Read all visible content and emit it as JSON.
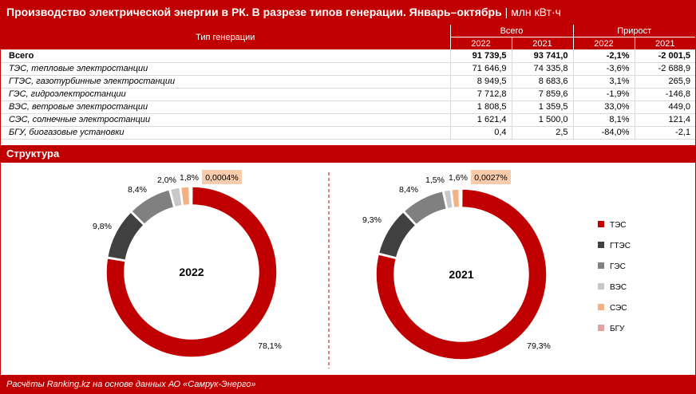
{
  "header": {
    "title_bold": "Производство электрической энергии в РК. В разрезе типов генерации. Январь–октябрь",
    "unit": "| млн кВт·ч"
  },
  "table": {
    "col_type": "Тип генерации",
    "group_total": "Всего",
    "group_growth": "Прирост",
    "years": [
      "2022",
      "2021",
      "2022",
      "2021"
    ],
    "rows": [
      {
        "name": "Всего",
        "v2022": "91 739,5",
        "v2021": "93 741,0",
        "g2022": "-2,1%",
        "g2021": "-2 001,5"
      },
      {
        "name": "ТЭС, тепловые электростанции",
        "v2022": "71 646,9",
        "v2021": "74 335,8",
        "g2022": "-3,6%",
        "g2021": "-2 688,9"
      },
      {
        "name": "ГТЭС, газотурбинные электростанции",
        "v2022": "8 949,5",
        "v2021": "8 683,6",
        "g2022": "3,1%",
        "g2021": "265,9"
      },
      {
        "name": "ГЭС, гидроэлектростанции",
        "v2022": "7 712,8",
        "v2021": "7 859,6",
        "g2022": "-1,9%",
        "g2021": "-146,8"
      },
      {
        "name": "ВЭС, ветровые электростанции",
        "v2022": "1 808,5",
        "v2021": "1 359,5",
        "g2022": "33,0%",
        "g2021": "449,0"
      },
      {
        "name": "СЭС, солнечные электростанции",
        "v2022": "1 621,4",
        "v2021": "1 500,0",
        "g2022": "8,1%",
        "g2021": "121,4"
      },
      {
        "name": "БГУ, биогазовые установки",
        "v2022": "0,4",
        "v2021": "2,5",
        "g2022": "-84,0%",
        "g2021": "-2,1"
      }
    ]
  },
  "structure_title": "Структура",
  "footer": "Расчёты Ranking.kz на основе данных АО «Самрук-Энерго»",
  "colors": {
    "ТЭС": "#c00000",
    "ГТЭС": "#404040",
    "ГЭС": "#808080",
    "ВЭС": "#c8c8c8",
    "СЭС": "#f4b183",
    "БГУ": "#e6a0a0",
    "highlight": "#f8cbad"
  },
  "chart_data": [
    {
      "type": "pie",
      "center_label": "2022",
      "categories": [
        "ТЭС",
        "ГТЭС",
        "ГЭС",
        "ВЭС",
        "СЭС",
        "БГУ"
      ],
      "values": [
        78.1,
        9.8,
        8.4,
        2.0,
        1.8,
        0.0004
      ],
      "labels": [
        "78,1%",
        "9,8%",
        "8,4%",
        "2,0%",
        "1,8%",
        "0,0004%"
      ]
    },
    {
      "type": "pie",
      "center_label": "2021",
      "categories": [
        "ТЭС",
        "ГТЭС",
        "ГЭС",
        "ВЭС",
        "СЭС",
        "БГУ"
      ],
      "values": [
        79.3,
        9.3,
        8.4,
        1.5,
        1.6,
        0.0027
      ],
      "labels": [
        "79,3%",
        "9,3%",
        "8,4%",
        "1,5%",
        "1,6%",
        "0,0027%"
      ]
    }
  ],
  "legend": [
    "ТЭС",
    "ГТЭС",
    "ГЭС",
    "ВЭС",
    "СЭС",
    "БГУ"
  ]
}
